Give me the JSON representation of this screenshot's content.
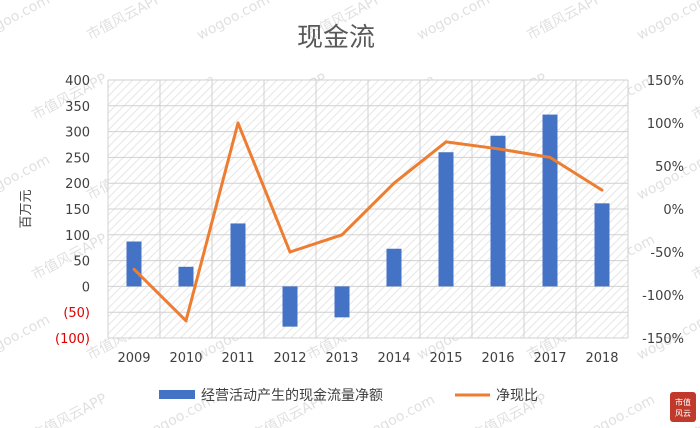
{
  "chart_data": {
    "type": "bar",
    "title": "现金流",
    "ylabel": "百万元",
    "xlabel": "",
    "categories": [
      "2009",
      "2010",
      "2011",
      "2012",
      "2013",
      "2014",
      "2015",
      "2016",
      "2017",
      "2018"
    ],
    "ylim": [
      -100,
      400
    ],
    "y_ticks": [
      "400",
      "350",
      "300",
      "250",
      "200",
      "150",
      "100",
      "50",
      "0",
      "(50)",
      "(100)"
    ],
    "y2lim": [
      -150,
      150
    ],
    "y2_ticks": [
      "150%",
      "100%",
      "50%",
      "0%",
      "-50%",
      "-100%",
      "-150%"
    ],
    "grid": true,
    "legend_position": "bottom",
    "series": [
      {
        "name": "经营活动产生的现金流量净额",
        "type": "bar",
        "axis": "left",
        "color": "#4472c4",
        "values": [
          87,
          38,
          122,
          -78,
          -60,
          73,
          260,
          292,
          333,
          161
        ]
      },
      {
        "name": "净现比",
        "type": "line",
        "axis": "right",
        "color": "#ed7d31",
        "values": [
          -70,
          -130,
          100,
          -50,
          -30,
          30,
          78,
          70,
          60,
          22
        ]
      }
    ]
  },
  "watermark": {
    "text_app": "市值风云APP",
    "text_site": "wogoo.com",
    "logo_text": "市值风云"
  }
}
